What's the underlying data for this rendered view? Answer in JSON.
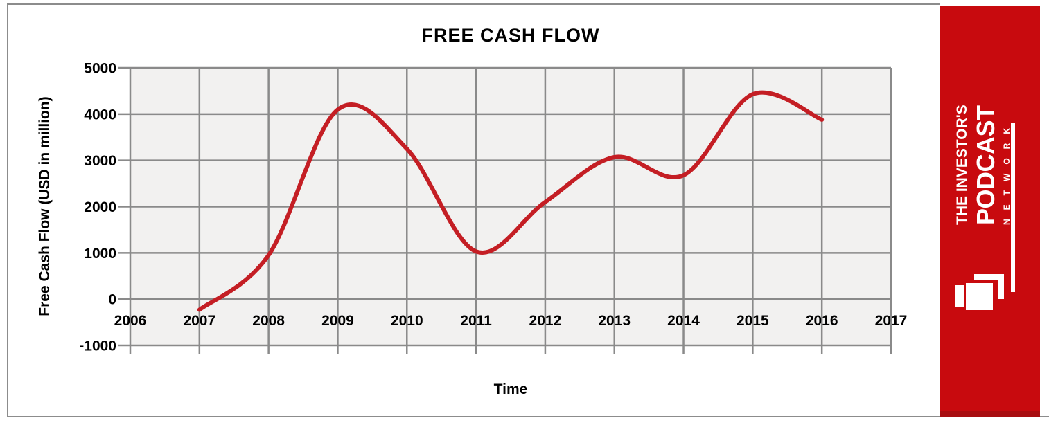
{
  "chart_data": {
    "type": "line",
    "title": "FREE CASH FLOW",
    "xlabel": "Time",
    "ylabel": "Free Cash Flow (USD in million)",
    "x": [
      2007,
      2008,
      2009,
      2010,
      2011,
      2012,
      2013,
      2014,
      2015,
      2016
    ],
    "values": [
      -230,
      950,
      4100,
      3250,
      1030,
      2100,
      3070,
      2680,
      4430,
      3880
    ],
    "series_name": "Free Cash Flow",
    "x_ticks": [
      2006,
      2007,
      2008,
      2009,
      2010,
      2011,
      2012,
      2013,
      2014,
      2015,
      2016,
      2017
    ],
    "y_ticks": [
      5000,
      4000,
      3000,
      2000,
      1000,
      0,
      -1000
    ],
    "xlim": [
      2006,
      2017
    ],
    "ylim": [
      -1000,
      5000
    ],
    "grid": true,
    "legend": "none",
    "smooth": true,
    "line_color": "#c41e24",
    "plot_bg": "#f2f1f0",
    "grid_color": "#8a8a8a"
  },
  "sidebar": {
    "bg_color": "#c80a0e",
    "brand_line1": "THE INVESTOR'S",
    "brand_line2": "PODCAST",
    "brand_line3": "NETWORK"
  }
}
